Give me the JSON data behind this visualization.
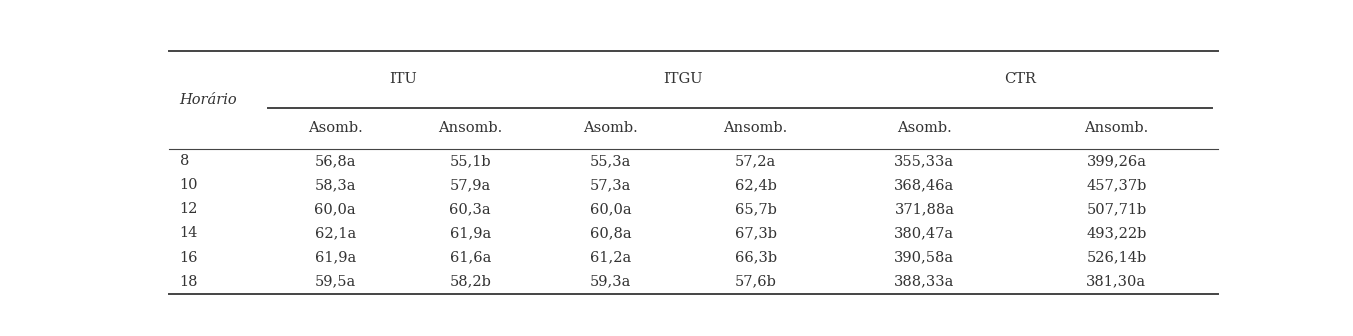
{
  "col_header_top": [
    "ITU",
    "ITGU",
    "CTR"
  ],
  "col_header_sub": [
    "Asomb.",
    "Ansomb.",
    "Asomb.",
    "Ansomb.",
    "Asomb.",
    "Ansomb."
  ],
  "rows": [
    [
      "8",
      "56,8a",
      "55,1b",
      "55,3a",
      "57,2a",
      "355,33a",
      "399,26a"
    ],
    [
      "10",
      "58,3a",
      "57,9a",
      "57,3a",
      "62,4b",
      "368,46a",
      "457,37b"
    ],
    [
      "12",
      "60,0a",
      "60,3a",
      "60,0a",
      "65,7b",
      "371,88a",
      "507,71b"
    ],
    [
      "14",
      "62,1a",
      "61,9a",
      "60,8a",
      "67,3b",
      "380,47a",
      "493,22b"
    ],
    [
      "16",
      "61,9a",
      "61,6a",
      "61,2a",
      "66,3b",
      "390,58a",
      "526,14b"
    ],
    [
      "18",
      "59,5a",
      "58,2b",
      "59,3a",
      "57,6b",
      "388,33a",
      "381,30a"
    ]
  ],
  "background_color": "#ffffff",
  "text_color": "#333333",
  "font_size": 10.5,
  "horario_label": "Horário"
}
